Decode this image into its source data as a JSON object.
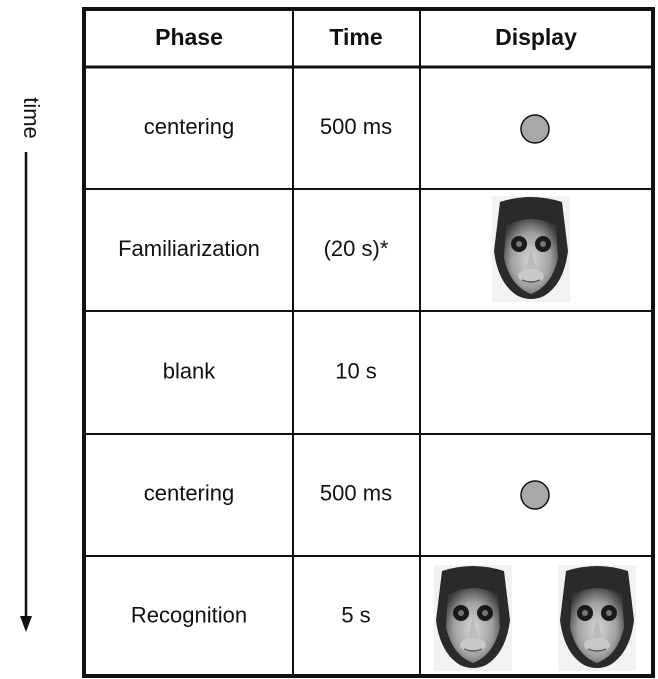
{
  "time_axis": {
    "label": "time"
  },
  "table": {
    "header": [
      "Phase",
      "Time",
      "Display"
    ],
    "rows": [
      [
        "centering",
        "500 ms"
      ],
      [
        "Familiarization",
        "(20 s)*"
      ],
      [
        "blank",
        "10 s"
      ],
      [
        "centering",
        "500 ms"
      ],
      [
        "Recognition",
        "5 s"
      ]
    ]
  }
}
